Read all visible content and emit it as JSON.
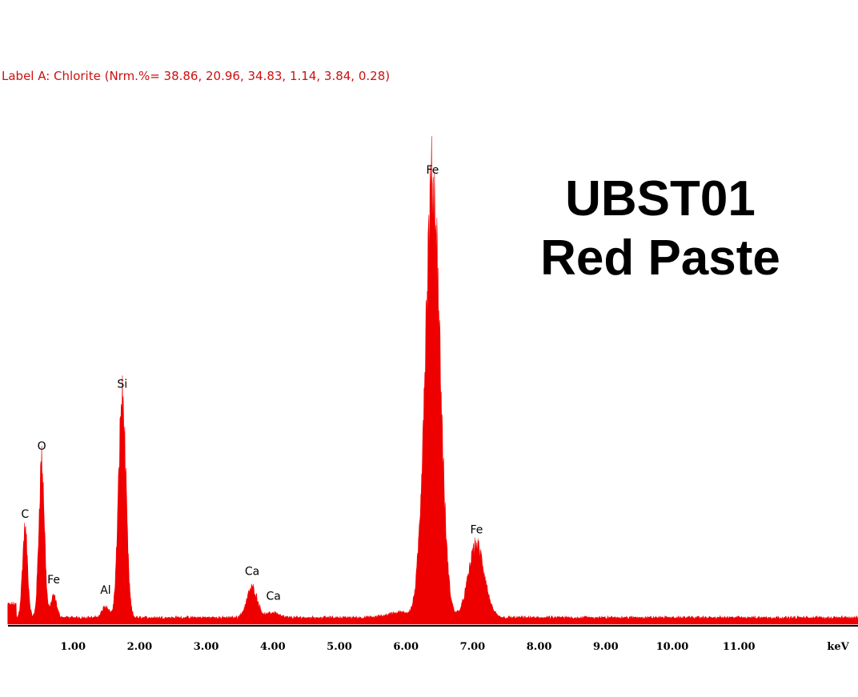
{
  "header": {
    "faint_text": "",
    "label_line": "Label A: Chlorite (Nrm.%= 38.86, 20.96, 34.83, 1.14, 3.84, 0.28)"
  },
  "title": {
    "line1": "UBST01",
    "line2": "Red Paste"
  },
  "colors": {
    "spectrum": "#ee0000",
    "label_text": "#cc1111",
    "axis": "#000000"
  },
  "chart_data": {
    "type": "area",
    "xlabel": "keV",
    "ylabel": "",
    "xlim": [
      0.0,
      12.8
    ],
    "ylim": [
      0,
      100
    ],
    "grid": false,
    "tick_values": [
      1,
      2,
      3,
      4,
      5,
      6,
      7,
      8,
      9,
      10,
      11
    ],
    "tick_labels": [
      "1.00",
      "2.00",
      "3.00",
      "4.00",
      "5.00",
      "6.00",
      "7.00",
      "8.00",
      "9.00",
      "10.00",
      "11.00"
    ],
    "axis_unit_label": "keV",
    "baseline_level": 1.5,
    "peaks": [
      {
        "element": "C",
        "energy": 0.28,
        "height": 20.2
      },
      {
        "element": "O",
        "energy": 0.53,
        "height": 36.0
      },
      {
        "element": "Fe",
        "energy": 0.71,
        "height": 5.0
      },
      {
        "element": "Al",
        "energy": 1.49,
        "height": 2.6
      },
      {
        "element": "Si",
        "energy": 1.74,
        "height": 50.4
      },
      {
        "element": "Ca",
        "energy": 3.69,
        "height": 6.9
      },
      {
        "element": "Ca",
        "energy": 4.01,
        "height": 1.2
      },
      {
        "element": "Fe",
        "energy": 6.4,
        "height": 100.0
      },
      {
        "element": "Fe",
        "energy": 7.06,
        "height": 16.6
      }
    ]
  }
}
